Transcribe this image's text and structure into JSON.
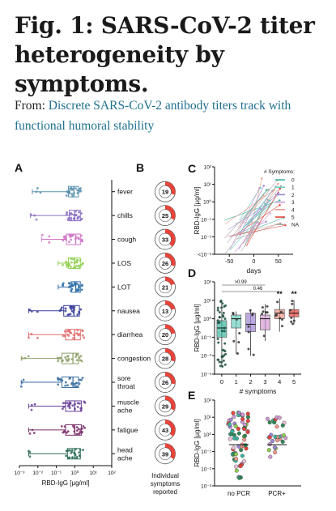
{
  "title": "Fig. 1: SARS-CoV-2 titer heterogeneity by symptoms.",
  "from_label": "From:",
  "article_link": "Discrete SARS-CoV-2 antibody titers track with functional humoral stability",
  "colors": {
    "fever": "#5b93b0",
    "chills": "#8a70c4",
    "cough": "#d074c8",
    "LOS": "#8fcf50",
    "LOT": "#2f6fa8",
    "nausea": "#3b3f9a",
    "diarrhea": "#e06a6a",
    "congestion": "#8fa06a",
    "sore throat": "#3a6ea0",
    "muscle ache": "#6a3f9a",
    "fatigue": "#7a2f6a",
    "head ache": "#2f6f58",
    "pie_red": "#e8443a",
    "ns0": "#3cb6a0",
    "ns1": "#6fcfc0",
    "ns2": "#9f86d4",
    "ns3": "#d39ad4",
    "ns4": "#ef9a8a",
    "ns5": "#e8443a",
    "nsNA": "#aaaaaa"
  },
  "panel_letters": {
    "A": "A",
    "B": "B",
    "C": "C",
    "D": "D",
    "E": "E"
  },
  "panelA": {
    "xlabel": "RBD-IgG [µg/ml]",
    "xticks": [
      "10⁻³",
      "10⁻²",
      "10⁻¹",
      "10⁰",
      "10¹",
      "10²"
    ],
    "rows": [
      {
        "label": [
          "fever"
        ],
        "min": -2.3,
        "q1": -0.35,
        "med": -0.05,
        "q3": 0.2
      },
      {
        "label": [
          "chills"
        ],
        "min": -2.4,
        "q1": -0.3,
        "med": 0.0,
        "q3": 0.3
      },
      {
        "label": [
          "cough"
        ],
        "min": -1.8,
        "q1": -0.45,
        "med": 0.05,
        "q3": 0.3
      },
      {
        "label": [
          "LOS"
        ],
        "min": -0.9,
        "q1": -0.35,
        "med": 0.0,
        "q3": 0.3
      },
      {
        "label": [
          "LOT"
        ],
        "min": -0.9,
        "q1": -0.2,
        "med": 0.05,
        "q3": 0.3
      },
      {
        "label": [
          "nausea"
        ],
        "min": -2.5,
        "q1": -0.6,
        "med": -0.05,
        "q3": 0.25
      },
      {
        "label": [
          "diarrhea"
        ],
        "min": -2.5,
        "q1": -0.5,
        "med": 0.0,
        "q3": 0.3
      },
      {
        "label": [
          "congestion"
        ],
        "min": -2.9,
        "q1": -0.7,
        "med": -0.1,
        "q3": 0.2
      },
      {
        "label": [
          "sore",
          "throat"
        ],
        "min": -2.9,
        "q1": -0.7,
        "med": -0.1,
        "q3": 0.2
      },
      {
        "label": [
          "muscle",
          "ache"
        ],
        "min": -2.5,
        "q1": -0.5,
        "med": 0.0,
        "q3": 0.35
      },
      {
        "label": [
          "fatigue"
        ],
        "min": -2.5,
        "q1": -0.5,
        "med": 0.0,
        "q3": 0.35
      },
      {
        "label": [
          "head",
          "ache"
        ],
        "min": -2.5,
        "q1": -0.4,
        "med": 0.0,
        "q3": 0.3
      }
    ]
  },
  "panelB": {
    "counts": [
      19,
      25,
      33,
      26,
      21,
      13,
      20,
      28,
      26,
      29,
      43,
      39
    ],
    "fractions": [
      0.3,
      0.32,
      0.38,
      0.3,
      0.2,
      0.22,
      0.23,
      0.3,
      0.28,
      0.32,
      0.36,
      0.34
    ],
    "caption": [
      "Individual",
      "symptoms",
      "reported"
    ]
  },
  "panelC": {
    "ylabel": "RBD-IgG [µg/ml]",
    "xlabel": "days",
    "yticks": [
      "10²",
      "10¹",
      "10⁰",
      "10⁻¹",
      "10⁻²",
      "<10⁻³"
    ],
    "xticks": [
      "-50",
      "0",
      "50"
    ],
    "legend_title": "# Symptoms:",
    "legend": [
      "0",
      "1",
      "2",
      "3",
      "4",
      "5",
      "NA"
    ]
  },
  "panelD": {
    "ylabel": "RBD-IgG [µg/ml]",
    "xlabel": "# symptoms",
    "yticks": [
      "10²",
      "10¹",
      "10⁰",
      "10⁻¹",
      "10⁻²",
      "10⁻³"
    ],
    "categories": [
      "0",
      "1",
      "2",
      "3",
      "4",
      "5"
    ],
    "boxes": [
      {
        "min": -2.6,
        "q1": -1.0,
        "med": -0.5,
        "q3": -0.1,
        "max": 1.0
      },
      {
        "min": -1.9,
        "q1": -0.5,
        "med": 0.0,
        "q3": 0.2,
        "max": 0.4
      },
      {
        "min": -2.0,
        "q1": -0.7,
        "med": -0.3,
        "q3": 0.3,
        "max": 0.5
      },
      {
        "min": -1.2,
        "q1": -0.6,
        "med": 0.0,
        "q3": 0.2,
        "max": 0.8
      },
      {
        "min": -0.7,
        "q1": 0.0,
        "med": 0.3,
        "q3": 0.5,
        "max": 1.1
      },
      {
        "min": -0.3,
        "q1": 0.1,
        "med": 0.3,
        "q3": 0.5,
        "max": 1.0
      }
    ],
    "sig": [
      ">0.99",
      "0.46",
      "**",
      "**"
    ]
  },
  "panelE": {
    "ylabel": "RBD-IgG [µg/ml]",
    "yticks": [
      "10²",
      "10¹",
      "10⁰",
      "10⁻¹",
      "10⁻²",
      "10⁻³"
    ],
    "categories": [
      "no PCR",
      "PCR+"
    ]
  }
}
